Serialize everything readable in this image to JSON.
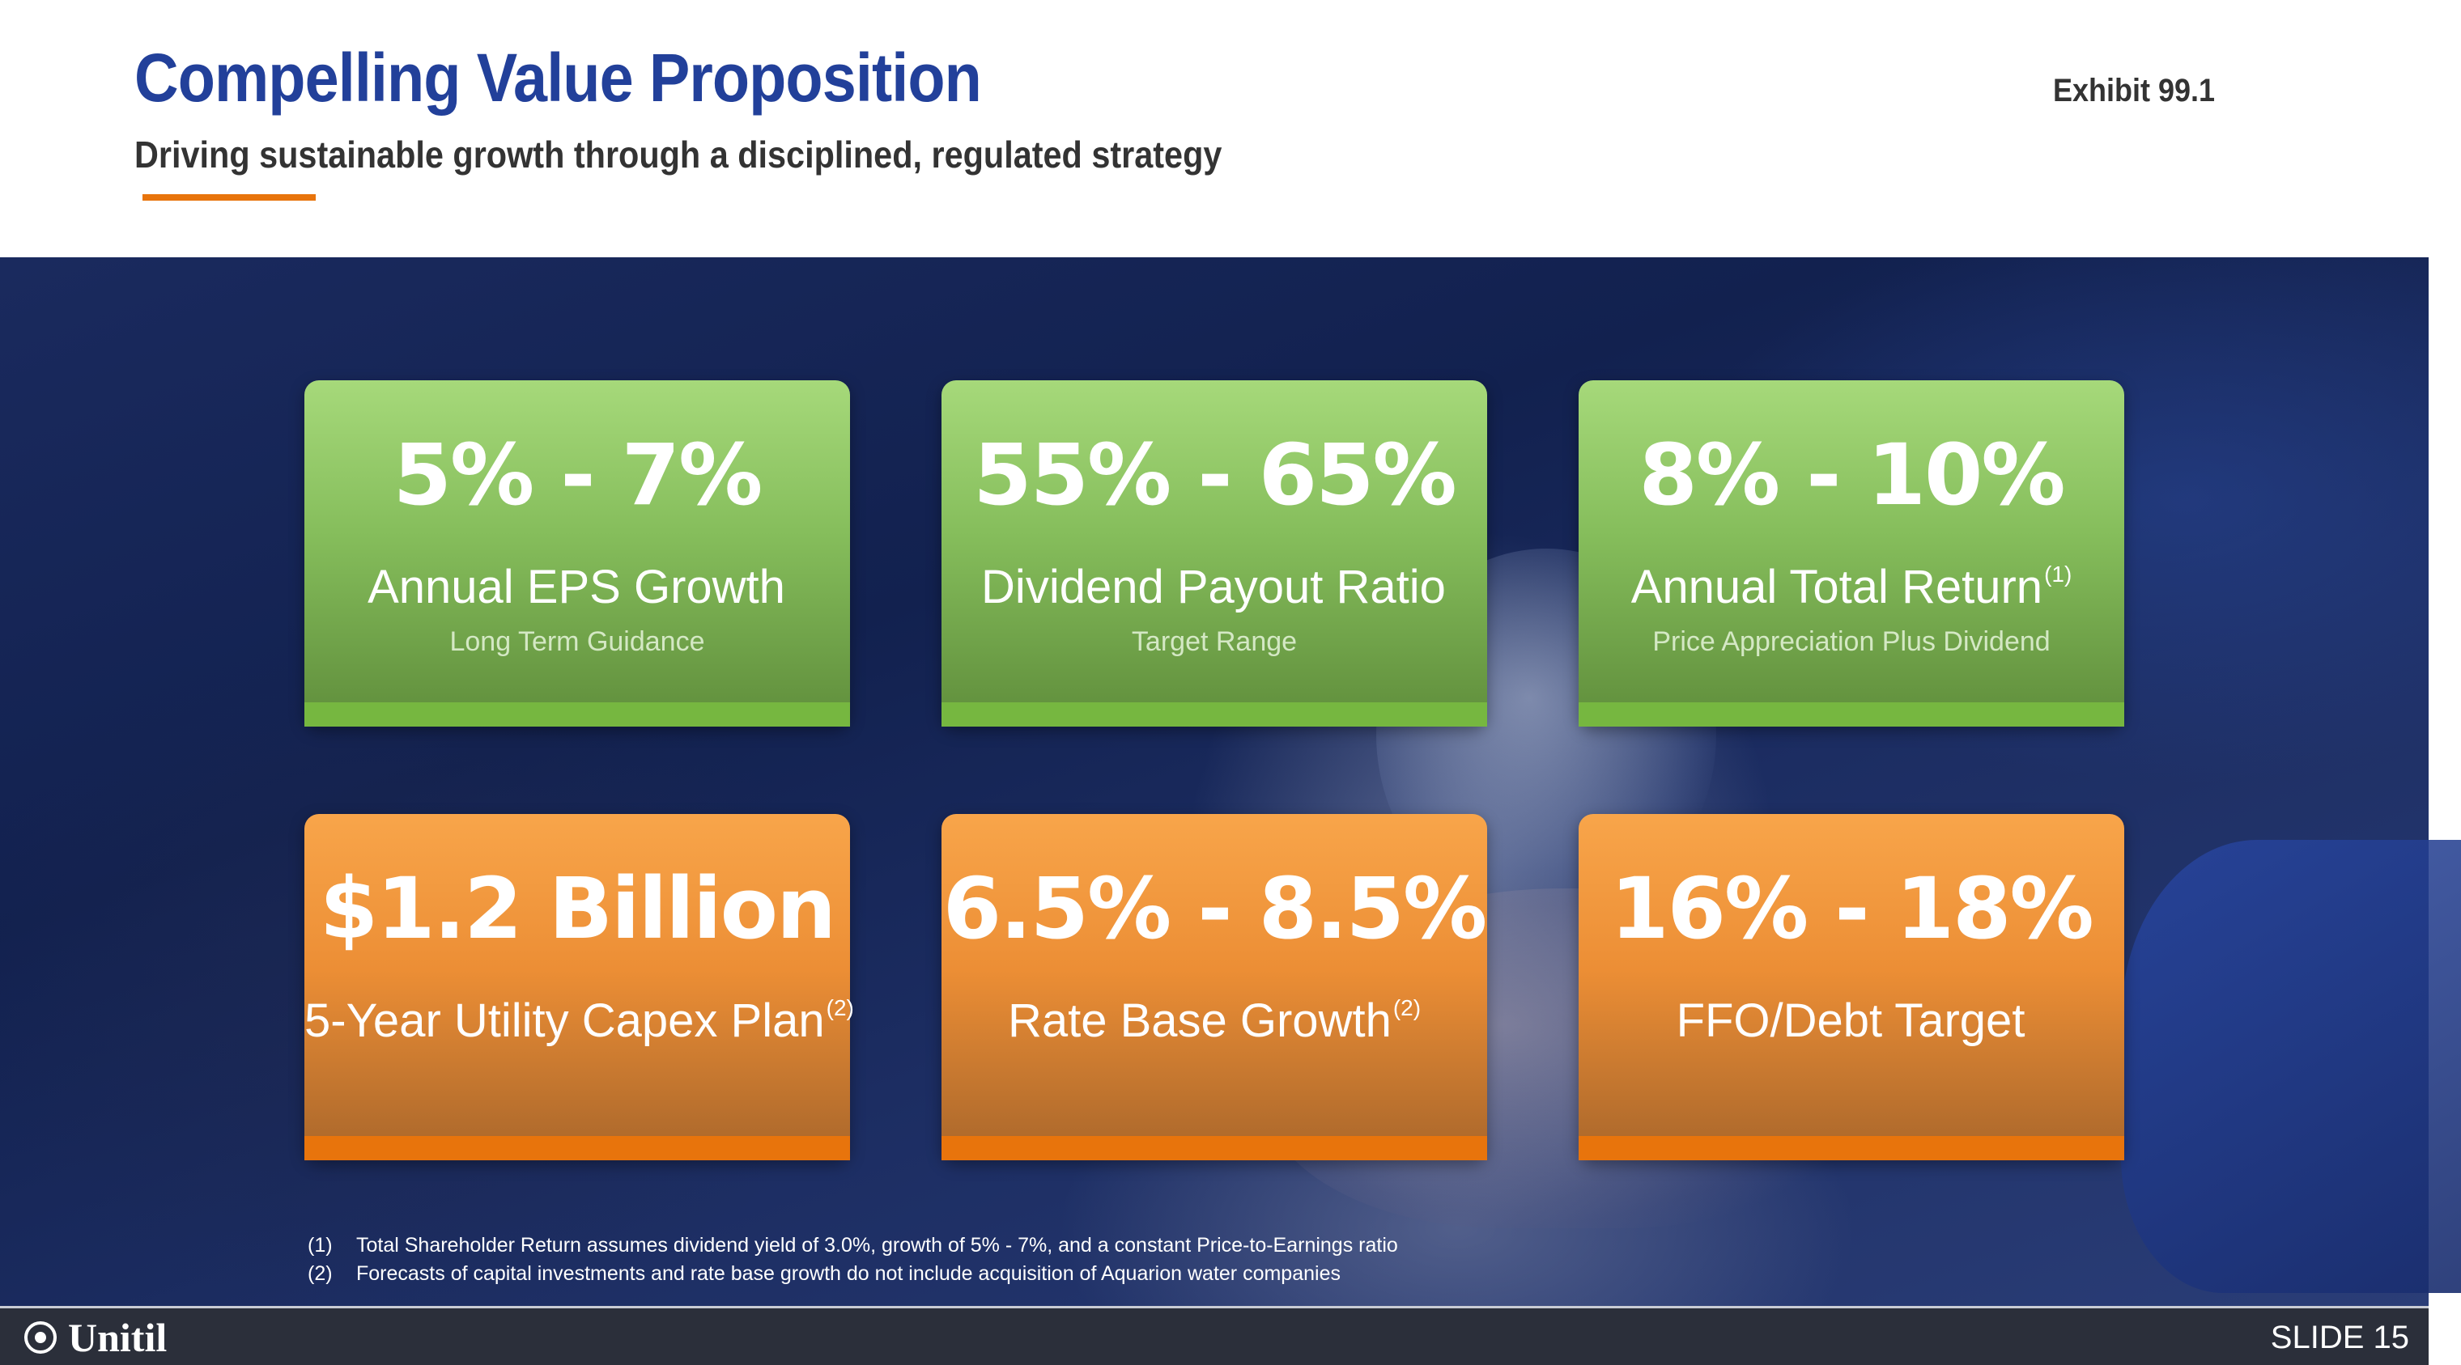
{
  "header": {
    "title": "Compelling Value Proposition",
    "subtitle": "Driving sustainable growth through a disciplined, regulated strategy",
    "exhibit": "Exhibit 99.1"
  },
  "cards": [
    {
      "value": "5% - 7%",
      "label": "Annual EPS Growth",
      "sup": "",
      "sublabel": "Long Term Guidance",
      "color": "green"
    },
    {
      "value": "55% - 65%",
      "label": "Dividend Payout Ratio",
      "sup": "",
      "sublabel": "Target Range",
      "color": "green"
    },
    {
      "value": "8% - 10%",
      "label": "Annual Total Return",
      "sup": "(1)",
      "sublabel": "Price Appreciation Plus Dividend",
      "color": "green"
    },
    {
      "value": "$1.2 Billion",
      "label": "5-Year Utility Capex Plan",
      "sup": "(2)",
      "sublabel": "",
      "color": "orange"
    },
    {
      "value": "6.5% - 8.5%",
      "label": "Rate Base Growth",
      "sup": "(2)",
      "sublabel": "",
      "color": "orange"
    },
    {
      "value": "16% - 18%",
      "label": "FFO/Debt Target",
      "sup": "",
      "sublabel": "",
      "color": "orange"
    }
  ],
  "footnotes": [
    {
      "num": "(1)",
      "text": "Total Shareholder Return assumes dividend yield of 3.0%, growth of 5% - 7%, and a constant Price-to-Earnings ratio"
    },
    {
      "num": "(2)",
      "text": "Forecasts of capital investments and rate base growth do not include acquisition of Aquarion water companies"
    }
  ],
  "footer": {
    "logo_text": "Unitil",
    "slide_number": "SLIDE 15"
  },
  "colors": {
    "title_blue": "#22409a",
    "accent_orange": "#e8740c",
    "card_green": "#85bd5b",
    "card_orange": "#ec8e35",
    "footer_bg": "#2b2f3a"
  }
}
